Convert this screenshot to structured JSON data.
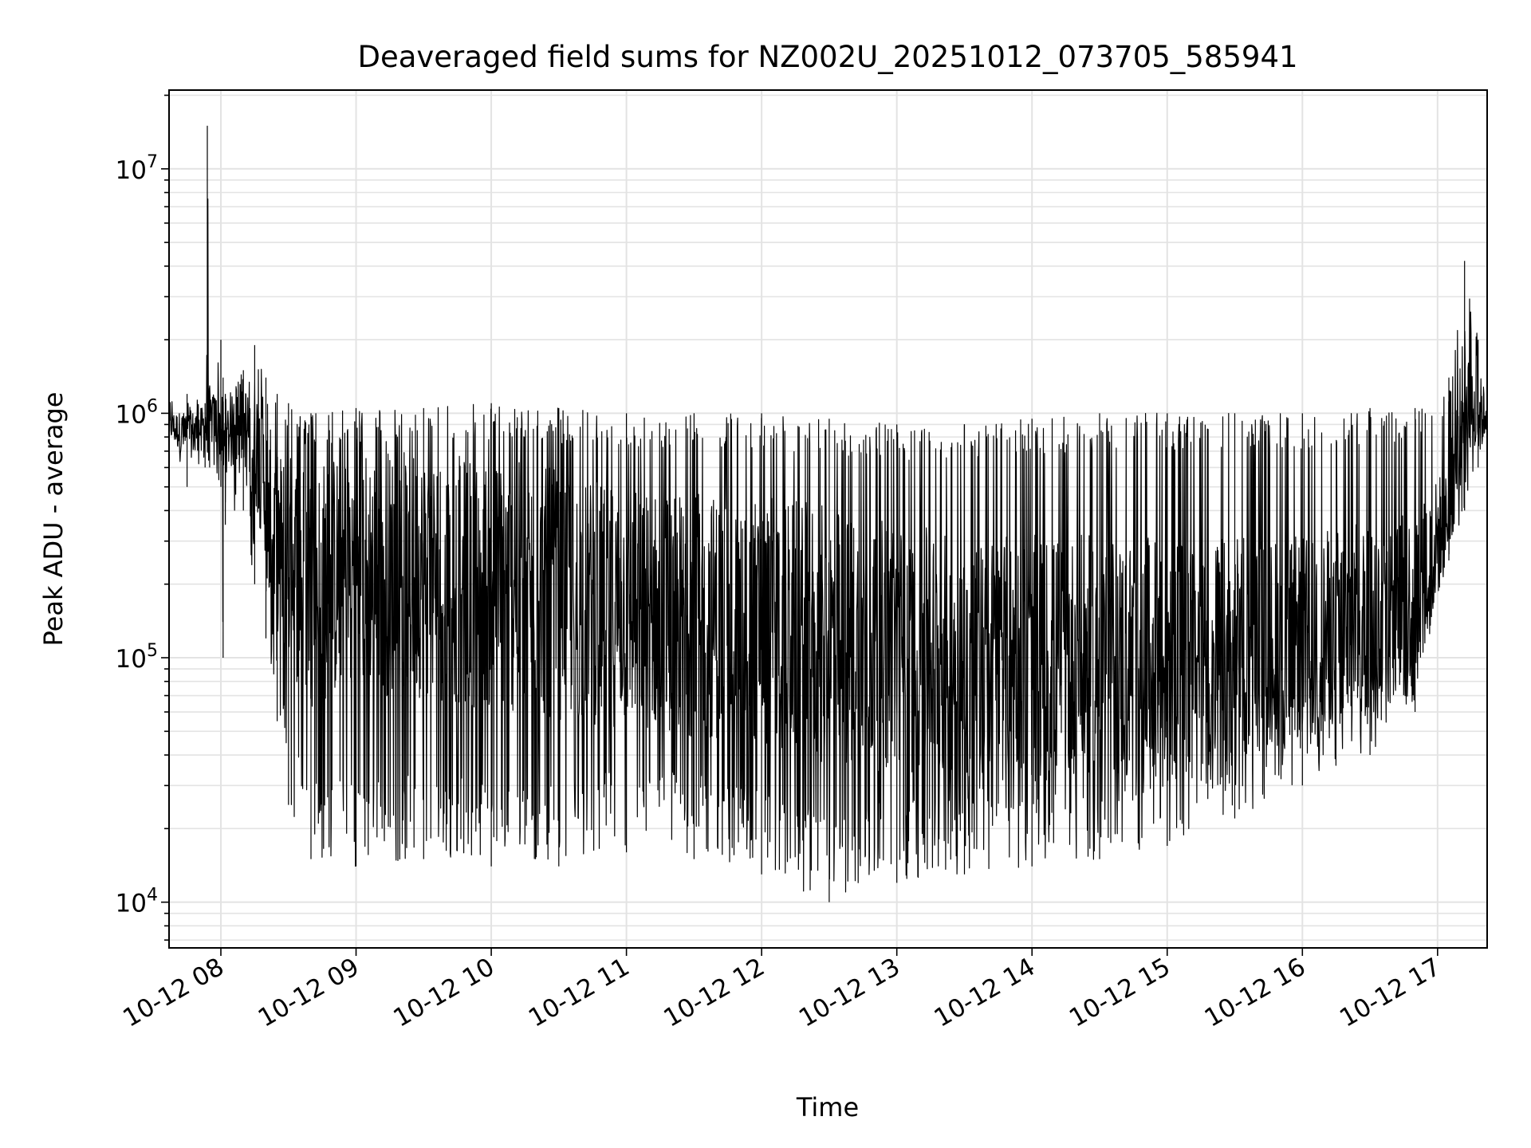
{
  "chart_data": {
    "type": "line",
    "title": "Deaveraged field sums for NZ002U_20251012_073705_585941",
    "xlabel": "Time",
    "ylabel": "Peak ADU - average",
    "yscale": "log",
    "grid": true,
    "x_tick_labels": [
      "10-12 08",
      "10-12 09",
      "10-12 10",
      "10-12 11",
      "10-12 12",
      "10-12 13",
      "10-12 14",
      "10-12 15",
      "10-12 16",
      "10-12 17"
    ],
    "y_tick_labels": [
      {
        "base": "10",
        "exp": "4",
        "value": 10000
      },
      {
        "base": "10",
        "exp": "5",
        "value": 100000
      },
      {
        "base": "10",
        "exp": "6",
        "value": 1000000
      },
      {
        "base": "10",
        "exp": "7",
        "value": 10000000
      }
    ],
    "xlim": [
      "2025-10-12 07:37",
      "2025-10-12 17:22"
    ],
    "ylim": [
      6500,
      21000000
    ],
    "series": [
      {
        "color": "#000000",
        "x": [
          "2025-10-12 07:37",
          "2025-10-12 07:45",
          "2025-10-12 07:53",
          "2025-10-12 07:54",
          "2025-10-12 07:55",
          "2025-10-12 08:00",
          "2025-10-12 08:01",
          "2025-10-12 08:02",
          "2025-10-12 08:10",
          "2025-10-12 08:15",
          "2025-10-12 08:20",
          "2025-10-12 08:25",
          "2025-10-12 08:30",
          "2025-10-12 08:40",
          "2025-10-12 09:00",
          "2025-10-12 09:30",
          "2025-10-12 10:00",
          "2025-10-12 10:30",
          "2025-10-12 11:00",
          "2025-10-12 11:30",
          "2025-10-12 12:00",
          "2025-10-12 12:30",
          "2025-10-12 13:00",
          "2025-10-12 13:30",
          "2025-10-12 14:00",
          "2025-10-12 14:30",
          "2025-10-12 15:00",
          "2025-10-12 15:30",
          "2025-10-12 16:00",
          "2025-10-12 16:30",
          "2025-10-12 16:50",
          "2025-10-12 17:05",
          "2025-10-12 17:12",
          "2025-10-12 17:18",
          "2025-10-12 17:22"
        ],
        "upper": [
          1100000,
          1200000,
          1100000,
          15000000,
          1300000,
          2000000,
          1400000,
          1200000,
          1500000,
          1900000,
          1400000,
          1200000,
          1100000,
          1000000,
          1050000,
          1050000,
          1100000,
          1050000,
          1000000,
          1000000,
          1000000,
          950000,
          900000,
          900000,
          950000,
          1000000,
          1000000,
          1000000,
          1000000,
          1050000,
          1050000,
          1400000,
          4200000,
          2000000,
          1400000
        ],
        "lower": [
          700000,
          500000,
          600000,
          700000,
          600000,
          500000,
          100000,
          350000,
          400000,
          200000,
          120000,
          55000,
          25000,
          15000,
          14000,
          15000,
          14000,
          14000,
          16000,
          15000,
          13000,
          10000,
          12000,
          13000,
          14000,
          15000,
          17000,
          22000,
          30000,
          40000,
          60000,
          250000,
          400000,
          600000,
          700000
        ],
        "typical": [
          900000,
          800000,
          900000,
          1000000,
          950000,
          900000,
          600000,
          800000,
          900000,
          800000,
          500000,
          300000,
          250000,
          200000,
          230000,
          220000,
          200000,
          180000,
          160000,
          150000,
          140000,
          120000,
          110000,
          100000,
          100000,
          100000,
          100000,
          110000,
          120000,
          150000,
          180000,
          400000,
          1200000,
          900000,
          1000000
        ]
      }
    ]
  }
}
